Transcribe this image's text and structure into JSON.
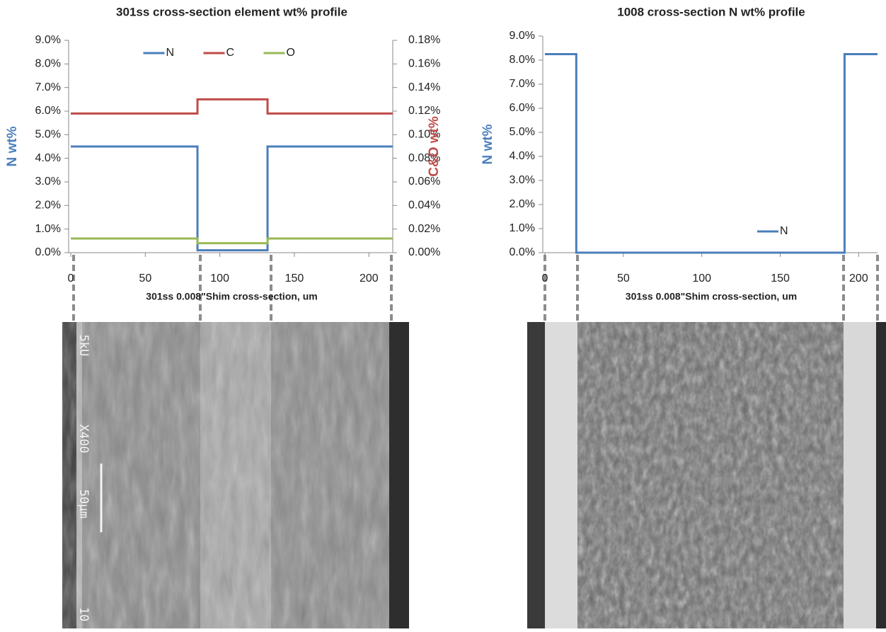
{
  "chart_data": [
    {
      "type": "line",
      "title": "301ss cross-section element wt% profile",
      "xlabel": "301ss 0.008\"Shim cross-section, um",
      "ylabel": "N  wt%",
      "ylabel_color": "#4a7ebb",
      "y2label": "C&O wt%",
      "y2label_color": "#be4b48",
      "x": [
        0,
        85,
        85,
        132,
        132,
        216
      ],
      "series": [
        {
          "name": "N",
          "color": "#4a7ebb",
          "values": [
            4.5,
            4.5,
            0.1,
            0.1,
            4.5,
            4.5
          ]
        },
        {
          "name": "C",
          "color": "#be4b48",
          "axis": "y2",
          "values": [
            0.118,
            0.118,
            0.13,
            0.13,
            0.118,
            0.118
          ]
        },
        {
          "name": "O",
          "color": "#98b954",
          "axis": "y2",
          "values": [
            0.012,
            0.012,
            0.008,
            0.008,
            0.012,
            0.012
          ]
        }
      ],
      "xlim": [
        0,
        216
      ],
      "xticks": [
        0,
        50,
        100,
        150,
        200
      ],
      "ylim": [
        0,
        9
      ],
      "yticks": [
        {
          "value": 0,
          "label": "0.0%"
        },
        {
          "value": 1,
          "label": "1.0%"
        },
        {
          "value": 2,
          "label": "2.0%"
        },
        {
          "value": 3,
          "label": "3.0%"
        },
        {
          "value": 4,
          "label": "4.0%"
        },
        {
          "value": 5,
          "label": "5.0%"
        },
        {
          "value": 6,
          "label": "6.0%"
        },
        {
          "value": 7,
          "label": "7.0%"
        },
        {
          "value": 8,
          "label": "8.0%"
        },
        {
          "value": 9,
          "label": "9.0%"
        }
      ],
      "y2lim": [
        0,
        0.18
      ],
      "y2ticks": [
        {
          "value": 0,
          "label": "0.00%"
        },
        {
          "value": 0.02,
          "label": "0.02%"
        },
        {
          "value": 0.04,
          "label": "0.04%"
        },
        {
          "value": 0.06,
          "label": "0.06%"
        },
        {
          "value": 0.08,
          "label": "0.08%"
        },
        {
          "value": 0.1,
          "label": "0.10%"
        },
        {
          "value": 0.12,
          "label": "0.12%"
        },
        {
          "value": 0.14,
          "label": "0.14%"
        },
        {
          "value": 0.16,
          "label": "0.16%"
        },
        {
          "value": 0.18,
          "label": "0.18%"
        }
      ],
      "legend": "top",
      "grid": false
    },
    {
      "type": "line",
      "title": "1008 cross-section N wt% profile",
      "xlabel": "301ss 0.008\"Shim cross-section, um",
      "ylabel": "N wt%",
      "ylabel_color": "#4a7ebb",
      "x": [
        0,
        20,
        20,
        191,
        191,
        212
      ],
      "series": [
        {
          "name": "N",
          "color": "#4a7ebb",
          "values": [
            8.25,
            8.25,
            0,
            0,
            8.25,
            8.25
          ]
        }
      ],
      "xlim": [
        0,
        212
      ],
      "xticks": [
        0,
        50,
        100,
        150,
        200
      ],
      "ylim": [
        0,
        9
      ],
      "yticks": [
        {
          "value": 0,
          "label": "0.0%"
        },
        {
          "value": 1,
          "label": "1.0%"
        },
        {
          "value": 2,
          "label": "2.0%"
        },
        {
          "value": 3,
          "label": "3.0%"
        },
        {
          "value": 4,
          "label": "4.0%"
        },
        {
          "value": 5,
          "label": "5.0%"
        },
        {
          "value": 6,
          "label": "6.0%"
        },
        {
          "value": 7,
          "label": "7.0%"
        },
        {
          "value": 8,
          "label": "8.0%"
        },
        {
          "value": 9,
          "label": "9.0%"
        }
      ],
      "legend": "lower right",
      "grid": false
    }
  ],
  "micrograph_labels": [
    "5kU",
    "X400",
    "50µm",
    "10"
  ]
}
